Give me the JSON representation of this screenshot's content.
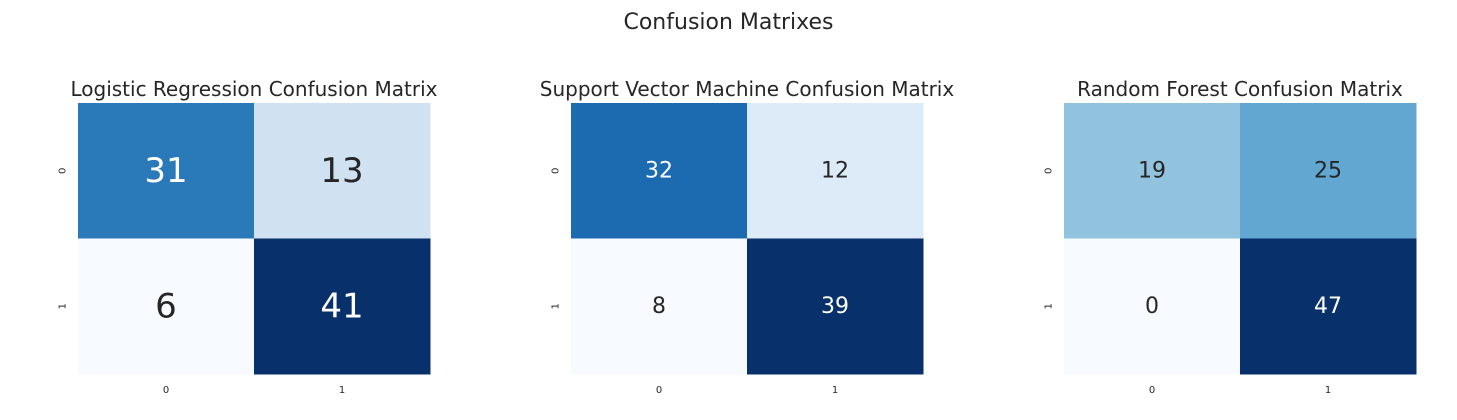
{
  "figure": {
    "suptitle": "Confusion Matrixes"
  },
  "chart_data": [
    {
      "type": "heatmap",
      "title": "Logistic Regression Confusion Matrix",
      "xlabel": "",
      "ylabel": "",
      "x_tick_labels": [
        "0",
        "1"
      ],
      "y_tick_labels": [
        "0",
        "1"
      ],
      "values": [
        [
          31,
          13
        ],
        [
          6,
          41
        ]
      ],
      "colormap": "Blues",
      "colorbar": false,
      "annotation_size": "large"
    },
    {
      "type": "heatmap",
      "title": "Support Vector Machine Confusion Matrix",
      "xlabel": "",
      "ylabel": "",
      "x_tick_labels": [
        "0",
        "1"
      ],
      "y_tick_labels": [
        "0",
        "1"
      ],
      "values": [
        [
          32,
          12
        ],
        [
          8,
          39
        ]
      ],
      "colormap": "Blues",
      "colorbar": false,
      "annotation_size": "medium"
    },
    {
      "type": "heatmap",
      "title": "Random Forest Confusion Matrix",
      "xlabel": "",
      "ylabel": "",
      "x_tick_labels": [
        "0",
        "1"
      ],
      "y_tick_labels": [
        "0",
        "1"
      ],
      "values": [
        [
          19,
          25
        ],
        [
          0,
          47
        ]
      ],
      "colormap": "Blues",
      "colorbar": false,
      "annotation_size": "medium"
    }
  ]
}
